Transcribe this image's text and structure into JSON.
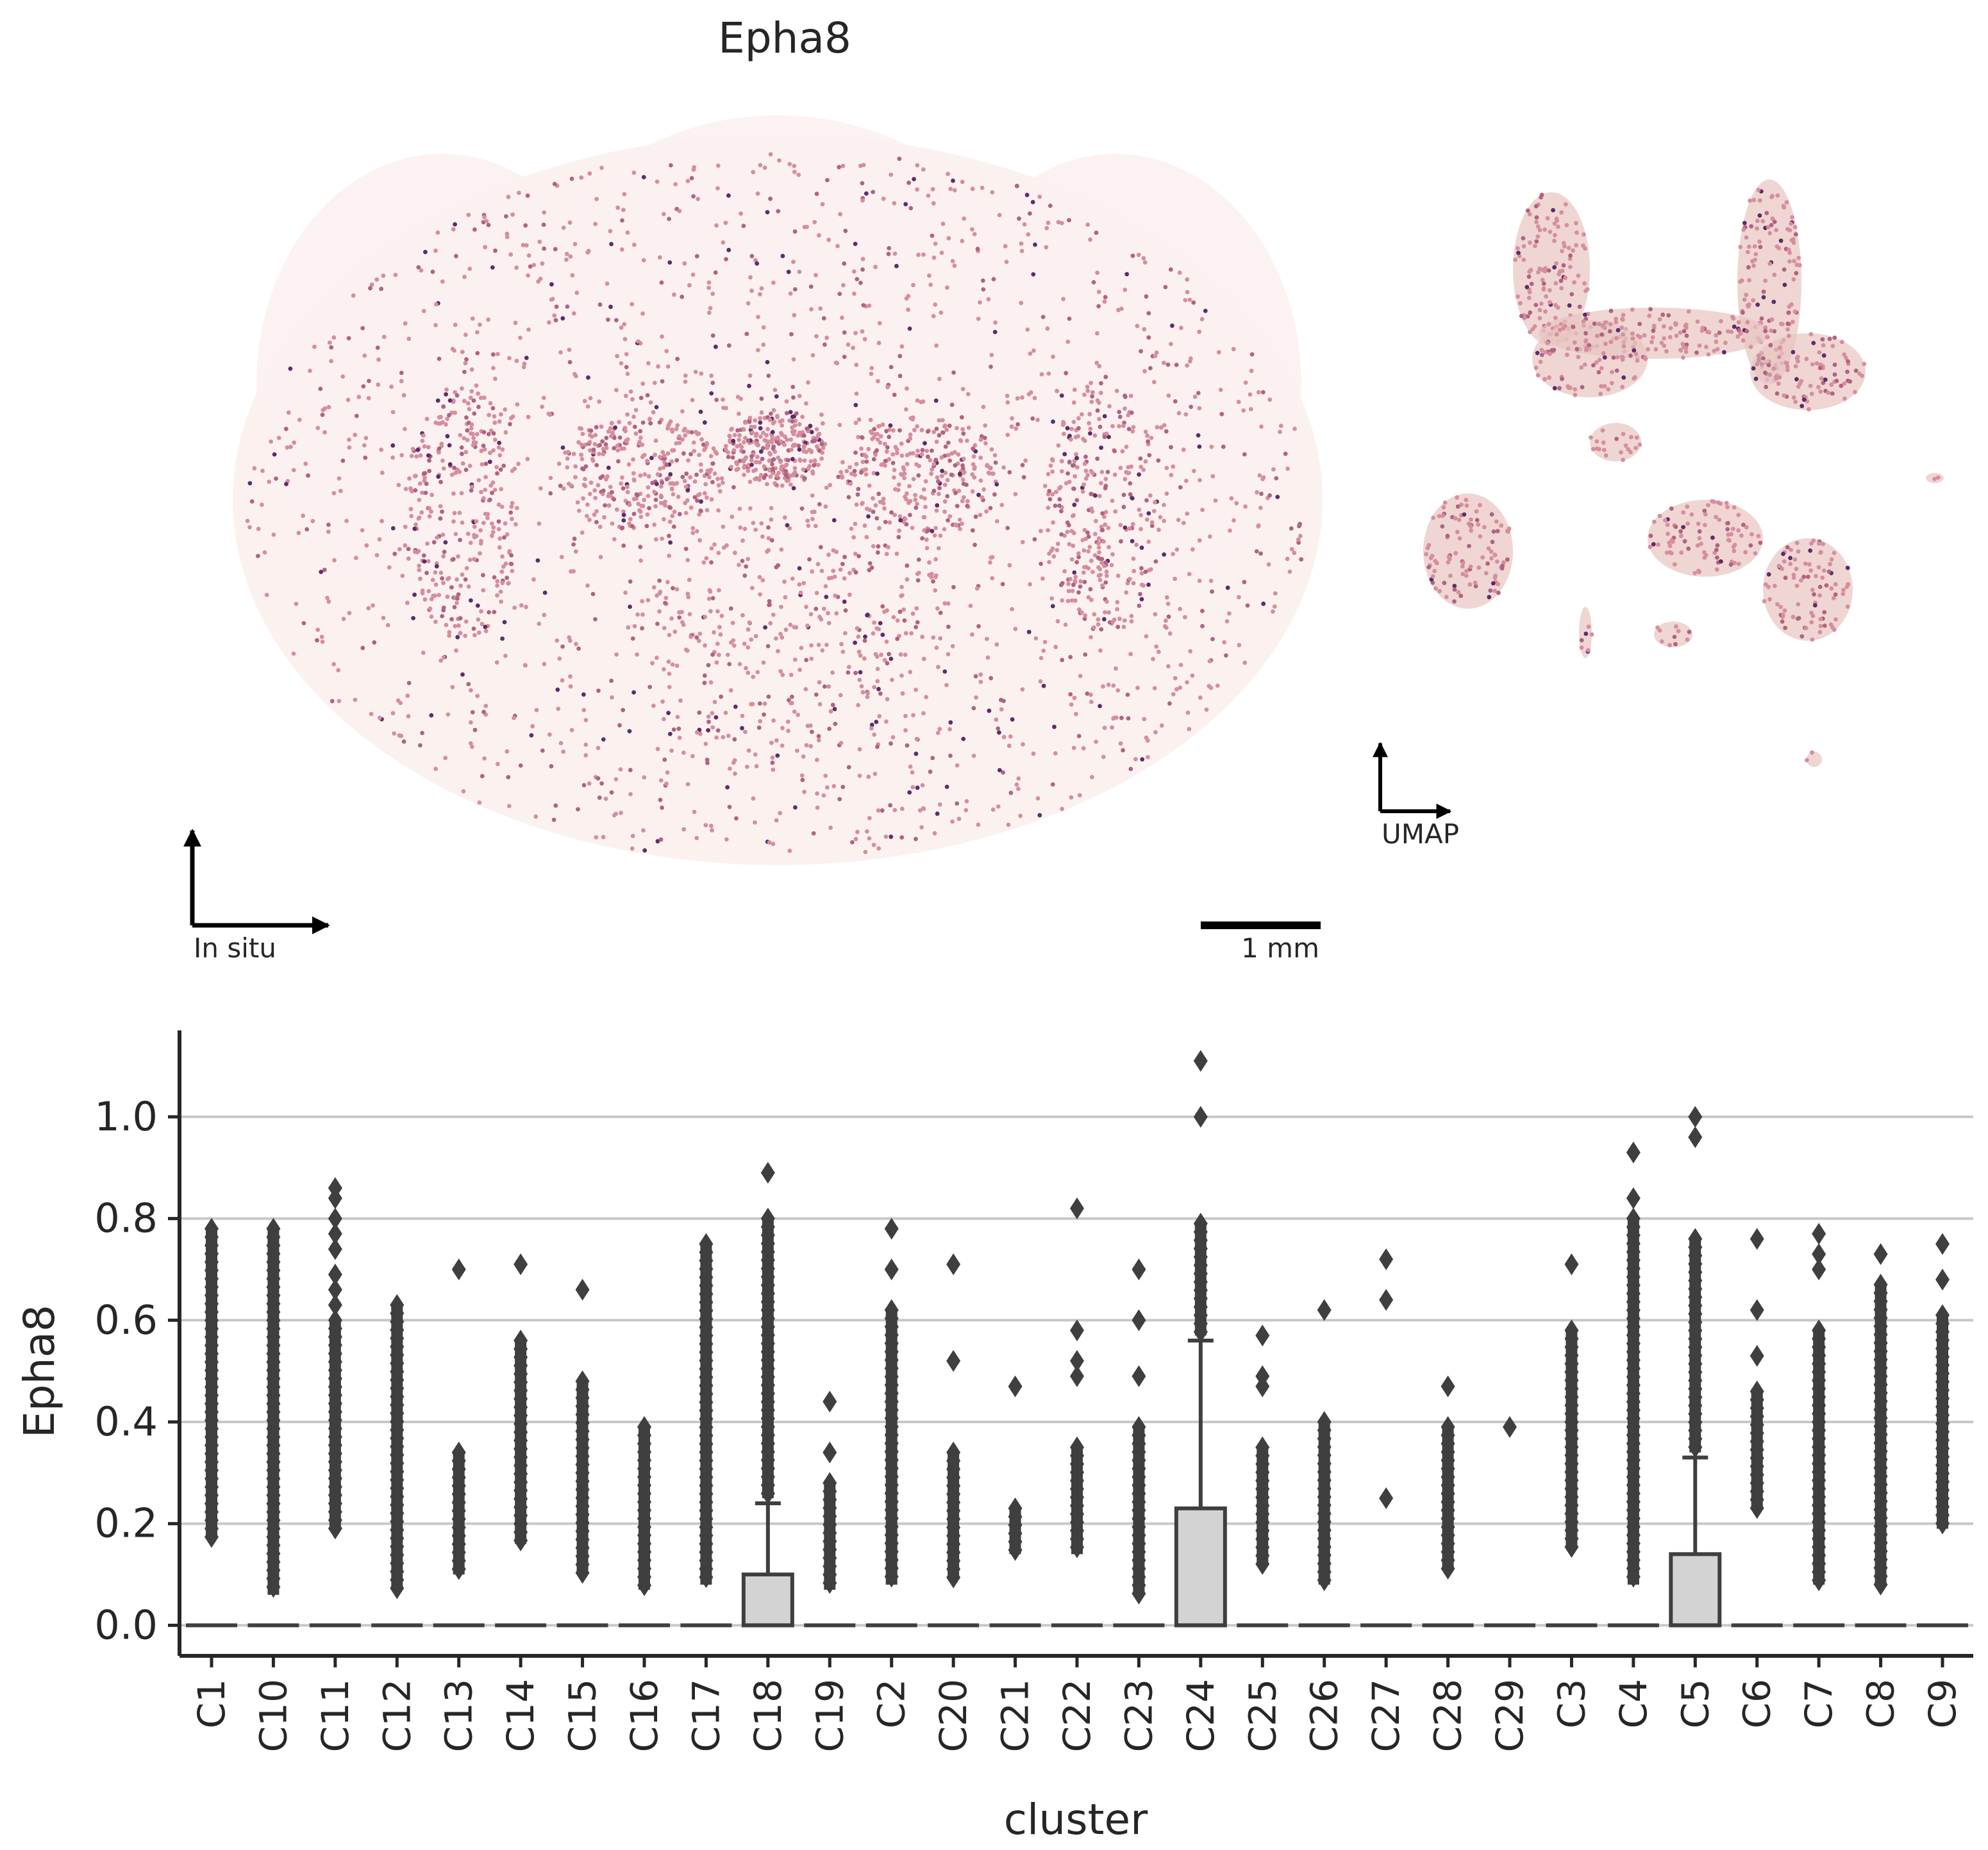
{
  "figure": {
    "title": "Epha8",
    "insitu_label": "In situ",
    "umap_label": "UMAP",
    "scalebar_label": "1 mm"
  },
  "colors": {
    "expr_low": "#f3dcd6",
    "expr_mid": "#d68e9d",
    "expr_high": "#5e2c6b",
    "box_face": "#d3d3d3",
    "box_edge": "#3f3f3f",
    "grid": "#c8c8c8"
  },
  "chart_data": {
    "type": "box",
    "xlabel": "cluster",
    "ylabel": "Epha8",
    "ylim": [
      -0.06,
      1.17
    ],
    "yticks": [
      "0.0",
      "0.2",
      "0.4",
      "0.6",
      "0.8",
      "1.0"
    ],
    "grid": "horizontal",
    "categories": [
      "C1",
      "C10",
      "C11",
      "C12",
      "C13",
      "C14",
      "C15",
      "C16",
      "C17",
      "C18",
      "C19",
      "C2",
      "C20",
      "C21",
      "C22",
      "C23",
      "C24",
      "C25",
      "C26",
      "C27",
      "C28",
      "C29",
      "C3",
      "C4",
      "C5",
      "C6",
      "C7",
      "C8",
      "C9"
    ],
    "boxes": [
      {
        "q1": 0,
        "median": 0,
        "q3": 0,
        "whisker_low": 0,
        "whisker_high": 0,
        "outliers_range": [
          0.17,
          0.78
        ],
        "outliers": []
      },
      {
        "q1": 0,
        "median": 0,
        "q3": 0,
        "whisker_low": 0,
        "whisker_high": 0,
        "outliers_range": [
          0.06,
          0.78
        ],
        "outliers": []
      },
      {
        "q1": 0,
        "median": 0,
        "q3": 0,
        "whisker_low": 0,
        "whisker_high": 0,
        "outliers_range": [
          0.19,
          0.6
        ],
        "outliers": [
          0.63,
          0.66,
          0.69,
          0.74,
          0.77,
          0.8,
          0.84,
          0.86
        ]
      },
      {
        "q1": 0,
        "median": 0,
        "q3": 0,
        "whisker_low": 0,
        "whisker_high": 0,
        "outliers_range": [
          0.07,
          0.63
        ],
        "outliers": []
      },
      {
        "q1": 0,
        "median": 0,
        "q3": 0,
        "whisker_low": 0,
        "whisker_high": 0,
        "outliers_range": [
          0.1,
          0.34
        ],
        "outliers": [
          0.7
        ]
      },
      {
        "q1": 0,
        "median": 0,
        "q3": 0,
        "whisker_low": 0,
        "whisker_high": 0,
        "outliers_range": [
          0.16,
          0.56
        ],
        "outliers": [
          0.71
        ]
      },
      {
        "q1": 0,
        "median": 0,
        "q3": 0,
        "whisker_low": 0,
        "whisker_high": 0,
        "outliers_range": [
          0.1,
          0.48
        ],
        "outliers": [
          0.66
        ]
      },
      {
        "q1": 0,
        "median": 0,
        "q3": 0,
        "whisker_low": 0,
        "whisker_high": 0,
        "outliers_range": [
          0.07,
          0.39
        ],
        "outliers": []
      },
      {
        "q1": 0,
        "median": 0,
        "q3": 0,
        "whisker_low": 0,
        "whisker_high": 0,
        "outliers_range": [
          0.08,
          0.75
        ],
        "outliers": []
      },
      {
        "q1": 0,
        "median": 0,
        "q3": 0.1,
        "whisker_low": 0,
        "whisker_high": 0.24,
        "outliers_range": [
          0.25,
          0.8
        ],
        "outliers": [
          0.89
        ]
      },
      {
        "q1": 0,
        "median": 0,
        "q3": 0,
        "whisker_low": 0,
        "whisker_high": 0,
        "outliers_range": [
          0.07,
          0.28
        ],
        "outliers": [
          0.34,
          0.44
        ]
      },
      {
        "q1": 0,
        "median": 0,
        "q3": 0,
        "whisker_low": 0,
        "whisker_high": 0,
        "outliers_range": [
          0.08,
          0.62
        ],
        "outliers": [
          0.7,
          0.78
        ]
      },
      {
        "q1": 0,
        "median": 0,
        "q3": 0,
        "whisker_low": 0,
        "whisker_high": 0,
        "outliers_range": [
          0.09,
          0.34
        ],
        "outliers": [
          0.52,
          0.71
        ]
      },
      {
        "q1": 0,
        "median": 0,
        "q3": 0,
        "whisker_low": 0,
        "whisker_high": 0,
        "outliers_range": [
          0.14,
          0.23
        ],
        "outliers": [
          0.47
        ]
      },
      {
        "q1": 0,
        "median": 0,
        "q3": 0,
        "whisker_low": 0,
        "whisker_high": 0,
        "outliers_range": [
          0.14,
          0.35
        ],
        "outliers": [
          0.49,
          0.52,
          0.58,
          0.82
        ]
      },
      {
        "q1": 0,
        "median": 0,
        "q3": 0,
        "whisker_low": 0,
        "whisker_high": 0,
        "outliers_range": [
          0.06,
          0.39
        ],
        "outliers": [
          0.49,
          0.6,
          0.7
        ]
      },
      {
        "q1": 0,
        "median": 0,
        "q3": 0.23,
        "whisker_low": 0,
        "whisker_high": 0.56,
        "outliers_range": [
          0.57,
          0.79
        ],
        "outliers": [
          1.0,
          1.11
        ]
      },
      {
        "q1": 0,
        "median": 0,
        "q3": 0,
        "whisker_low": 0,
        "whisker_high": 0,
        "outliers_range": [
          0.12,
          0.35
        ],
        "outliers": [
          0.47,
          0.49,
          0.57
        ]
      },
      {
        "q1": 0,
        "median": 0,
        "q3": 0,
        "whisker_low": 0,
        "whisker_high": 0,
        "outliers_range": [
          0.08,
          0.4
        ],
        "outliers": [
          0.62
        ]
      },
      {
        "q1": 0,
        "median": 0,
        "q3": 0,
        "whisker_low": 0,
        "whisker_high": 0,
        "outliers_range": [],
        "outliers": [
          0.25,
          0.64,
          0.72
        ]
      },
      {
        "q1": 0,
        "median": 0,
        "q3": 0,
        "whisker_low": 0,
        "whisker_high": 0,
        "outliers_range": [
          0.11,
          0.39
        ],
        "outliers": [
          0.47
        ]
      },
      {
        "q1": 0,
        "median": 0,
        "q3": 0,
        "whisker_low": 0,
        "whisker_high": 0,
        "outliers_range": [],
        "outliers": [
          0.39
        ]
      },
      {
        "q1": 0,
        "median": 0,
        "q3": 0,
        "whisker_low": 0,
        "whisker_high": 0,
        "outliers_range": [
          0.15,
          0.58
        ],
        "outliers": [
          0.71
        ]
      },
      {
        "q1": 0,
        "median": 0,
        "q3": 0,
        "whisker_low": 0,
        "whisker_high": 0,
        "outliers_range": [
          0.08,
          0.8
        ],
        "outliers": [
          0.84,
          0.93
        ]
      },
      {
        "q1": 0,
        "median": 0,
        "q3": 0.14,
        "whisker_low": 0,
        "whisker_high": 0.33,
        "outliers_range": [
          0.34,
          0.76
        ],
        "outliers": [
          0.96,
          1.0
        ]
      },
      {
        "q1": 0,
        "median": 0,
        "q3": 0,
        "whisker_low": 0,
        "whisker_high": 0,
        "outliers_range": [
          0.23,
          0.46
        ],
        "outliers": [
          0.53,
          0.62,
          0.76
        ]
      },
      {
        "q1": 0,
        "median": 0,
        "q3": 0,
        "whisker_low": 0,
        "whisker_high": 0,
        "outliers_range": [
          0.08,
          0.58
        ],
        "outliers": [
          0.7,
          0.73,
          0.77
        ]
      },
      {
        "q1": 0,
        "median": 0,
        "q3": 0,
        "whisker_low": 0,
        "whisker_high": 0,
        "outliers_range": [
          0.08,
          0.67
        ],
        "outliers": [
          0.73
        ]
      },
      {
        "q1": 0,
        "median": 0,
        "q3": 0,
        "whisker_low": 0,
        "whisker_high": 0,
        "outliers_range": [
          0.19,
          0.61
        ],
        "outliers": [
          0.68,
          0.75
        ]
      }
    ]
  }
}
